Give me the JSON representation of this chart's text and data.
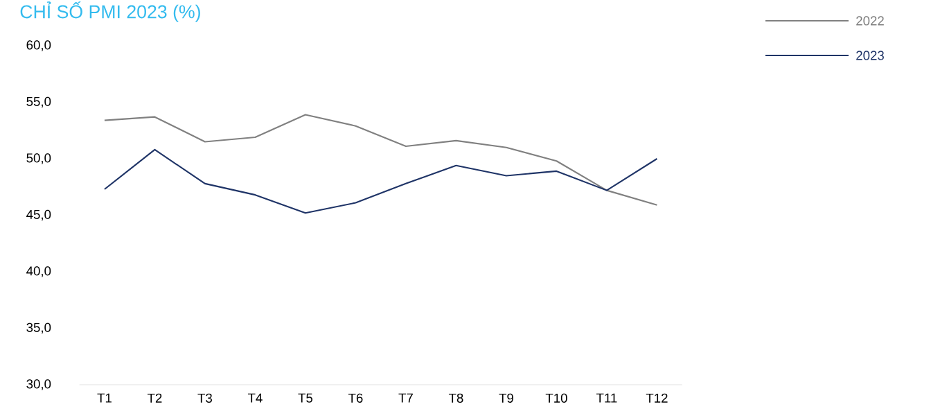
{
  "chart_data": {
    "type": "line",
    "title": "CHỈ SỐ PMI 2023 (%)",
    "categories": [
      "T1",
      "T2",
      "T3",
      "T4",
      "T5",
      "T6",
      "T7",
      "T8",
      "T9",
      "T10",
      "T11",
      "T12"
    ],
    "series": [
      {
        "name": "2022",
        "color": "#808080",
        "values": [
          53.4,
          53.7,
          51.5,
          51.9,
          53.9,
          52.9,
          51.1,
          51.6,
          51.0,
          49.8,
          47.2,
          45.9
        ]
      },
      {
        "name": "2023",
        "color": "#1f3467",
        "values": [
          47.3,
          50.8,
          47.8,
          46.8,
          45.2,
          46.1,
          47.8,
          49.4,
          48.5,
          48.9,
          47.2,
          50.0
        ]
      }
    ],
    "ylim": [
      30,
      60
    ],
    "yticks": [
      {
        "value": 30,
        "label": "30,0"
      },
      {
        "value": 35,
        "label": "35,0"
      },
      {
        "value": 40,
        "label": "40,0"
      },
      {
        "value": 45,
        "label": "45,0"
      },
      {
        "value": 50,
        "label": "50,0"
      },
      {
        "value": 55,
        "label": "55,0"
      },
      {
        "value": 60,
        "label": "60,0"
      }
    ],
    "legend": "top right"
  }
}
